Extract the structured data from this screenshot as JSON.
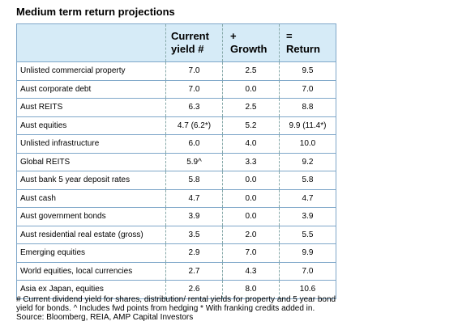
{
  "title": "Medium term return projections",
  "headers": {
    "asset": "",
    "current_yield": [
      "Current",
      "yield #"
    ],
    "growth": [
      "+",
      "Growth"
    ],
    "return": [
      "=",
      "Return"
    ]
  },
  "rows": [
    {
      "asset": "Unlisted commercial property",
      "yield": "7.0",
      "growth": "2.5",
      "return": "9.5"
    },
    {
      "asset": "Aust corporate debt",
      "yield": "7.0",
      "growth": "0.0",
      "return": "7.0"
    },
    {
      "asset": "Aust REITS",
      "yield": "6.3",
      "growth": "2.5",
      "return": "8.8"
    },
    {
      "asset": "Aust equities",
      "yield": "4.7 (6.2*)",
      "growth": "5.2",
      "return": "9.9 (11.4*)"
    },
    {
      "asset": "Unlisted infrastructure",
      "yield": "6.0",
      "growth": "4.0",
      "return": "10.0"
    },
    {
      "asset": "Global REITS",
      "yield": "5.9^",
      "growth": "3.3",
      "return": "9.2"
    },
    {
      "asset": "Aust bank 5 year deposit rates",
      "yield": "5.8",
      "growth": "0.0",
      "return": "5.8"
    },
    {
      "asset": "Aust cash",
      "yield": "4.7",
      "growth": "0.0",
      "return": "4.7"
    },
    {
      "asset": "Aust government bonds",
      "yield": "3.9",
      "growth": "0.0",
      "return": "3.9"
    },
    {
      "asset": "Aust residential real estate (gross)",
      "yield": "3.5",
      "growth": "2.0",
      "return": "5.5"
    },
    {
      "asset": "Emerging equities",
      "yield": "2.9",
      "growth": "7.0",
      "return": "9.9"
    },
    {
      "asset": "World equities, local currencies",
      "yield": "2.7",
      "growth": "4.3",
      "return": "7.0"
    },
    {
      "asset": "Asia ex Japan, equities",
      "yield": "2.6",
      "growth": "8.0",
      "return": "10.6"
    }
  ],
  "footnote": "# Current dividend yield for shares, distribution/ rental yields for property and 5 year bond yield for bonds. ^ Includes fwd points from hedging * With franking credits added in. Source: Bloomberg, REIA, AMP Capital Investors"
}
